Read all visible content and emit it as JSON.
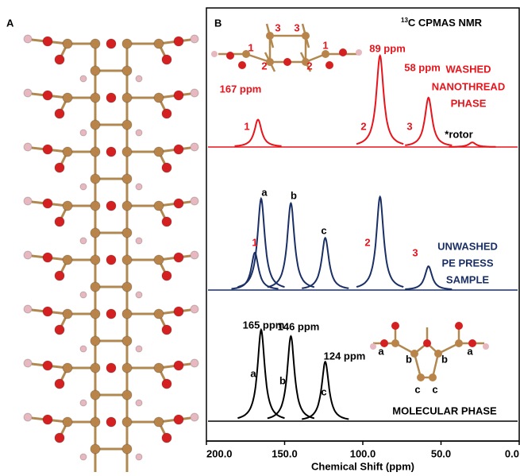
{
  "chart_data": {
    "type": "spectrum",
    "panel_labels": [
      "A",
      "B"
    ],
    "nmr_label": {
      "sup": "13",
      "text": "C CPMAS NMR"
    },
    "x_label": "Chemical Shift (ppm)",
    "xlim": [
      200,
      0
    ],
    "xticks": [
      {
        "value": 200,
        "label": "200.0"
      },
      {
        "value": 150,
        "label": "150.0"
      },
      {
        "value": 100,
        "label": "100.0"
      },
      {
        "value": 50,
        "label": "50.0"
      },
      {
        "value": 0,
        "label": "0.0"
      }
    ],
    "series": [
      {
        "color": "#e8141c",
        "x": [
          167,
          89,
          58,
          30
        ],
        "values": [
          0.3,
          1.0,
          0.54,
          0.05
        ]
      },
      {
        "color": "#1a2f66",
        "x": [
          169,
          165,
          146,
          124,
          89,
          58
        ],
        "values": [
          0.41,
          1.0,
          0.95,
          0.57,
          1.02,
          0.26
        ]
      },
      {
        "color": "#000000",
        "x": [
          165,
          146,
          124
        ],
        "values": [
          1.0,
          0.93,
          0.65
        ]
      }
    ],
    "annotations": [
      [
        "167 ppm",
        "89 ppm",
        "58 ppm",
        "1",
        "2",
        "3",
        "*rotor",
        "WASHED",
        "NANOTHREAD",
        "PHASE"
      ],
      [
        "a",
        "b",
        "c",
        "1",
        "2",
        "3",
        "UNWASHED",
        "PE PRESS",
        "SAMPLE"
      ],
      [
        "165 ppm",
        "146 ppm",
        "124 ppm",
        "a",
        "b",
        "c",
        "MOLECULAR PHASE"
      ]
    ],
    "inset_labels": [
      [
        "1",
        "2",
        "3",
        "3",
        "2",
        "1"
      ],
      [
        "a",
        "b",
        "b",
        "a",
        "c",
        "c"
      ]
    ]
  }
}
